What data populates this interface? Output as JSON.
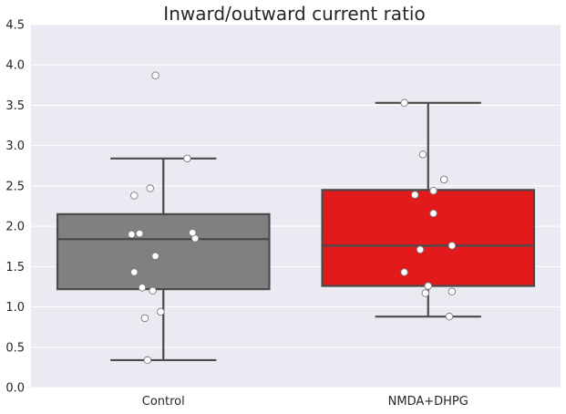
{
  "chart_data": {
    "type": "box",
    "title": "Inward/outward current ratio",
    "xlabel": "",
    "ylabel": "",
    "ylim": [
      0.0,
      4.5
    ],
    "yticks": [
      0.0,
      0.5,
      1.0,
      1.5,
      2.0,
      2.5,
      3.0,
      3.5,
      4.0,
      4.5
    ],
    "ytick_labels": [
      "0.0",
      "0.5",
      "1.0",
      "1.5",
      "2.0",
      "2.5",
      "3.0",
      "3.5",
      "4.0",
      "4.5"
    ],
    "grid": true,
    "background_color": "#eaeaf2",
    "grid_color": "#ffffff",
    "categories": [
      "Control",
      "NMDA+DHPG"
    ],
    "boxes": [
      {
        "category": "Control",
        "color": "#808080",
        "whisker_low": 0.34,
        "q1": 1.22,
        "median": 1.84,
        "q3": 2.15,
        "whisker_high": 2.84,
        "points": [
          {
            "x_offset": -0.06,
            "y": 0.34
          },
          {
            "x_offset": -0.07,
            "y": 0.86
          },
          {
            "x_offset": -0.01,
            "y": 0.94
          },
          {
            "x_offset": -0.04,
            "y": 1.2
          },
          {
            "x_offset": -0.08,
            "y": 1.24
          },
          {
            "x_offset": -0.11,
            "y": 1.43
          },
          {
            "x_offset": -0.03,
            "y": 1.63
          },
          {
            "x_offset": 0.12,
            "y": 1.85
          },
          {
            "x_offset": -0.12,
            "y": 1.9
          },
          {
            "x_offset": -0.09,
            "y": 1.91
          },
          {
            "x_offset": 0.11,
            "y": 1.92
          },
          {
            "x_offset": -0.11,
            "y": 2.38
          },
          {
            "x_offset": -0.05,
            "y": 2.47
          },
          {
            "x_offset": 0.09,
            "y": 2.84
          },
          {
            "x_offset": -0.03,
            "y": 3.87
          }
        ]
      },
      {
        "category": "NMDA+DHPG",
        "color": "#e31a1c",
        "whisker_low": 0.88,
        "q1": 1.26,
        "median": 1.76,
        "q3": 2.45,
        "whisker_high": 3.53,
        "points": [
          {
            "x_offset": 0.08,
            "y": 0.88
          },
          {
            "x_offset": -0.01,
            "y": 1.17
          },
          {
            "x_offset": 0.09,
            "y": 1.19
          },
          {
            "x_offset": 0.0,
            "y": 1.26
          },
          {
            "x_offset": -0.09,
            "y": 1.43
          },
          {
            "x_offset": -0.03,
            "y": 1.71
          },
          {
            "x_offset": 0.09,
            "y": 1.76
          },
          {
            "x_offset": 0.02,
            "y": 2.16
          },
          {
            "x_offset": -0.05,
            "y": 2.39
          },
          {
            "x_offset": 0.02,
            "y": 2.44
          },
          {
            "x_offset": 0.06,
            "y": 2.58
          },
          {
            "x_offset": -0.02,
            "y": 2.89
          },
          {
            "x_offset": -0.09,
            "y": 3.53
          }
        ]
      }
    ]
  }
}
